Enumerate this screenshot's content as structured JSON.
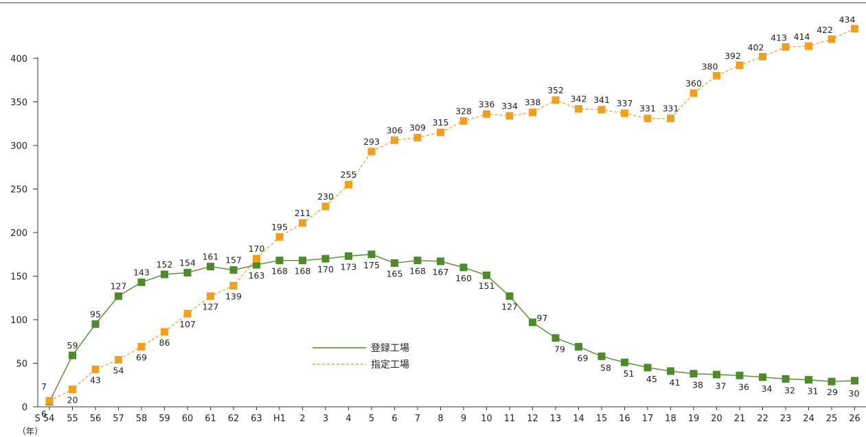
{
  "chart_data": {
    "type": "line",
    "categories": [
      "S 54",
      "55",
      "56",
      "57",
      "58",
      "59",
      "60",
      "61",
      "62",
      "63",
      "H1",
      "2",
      "3",
      "4",
      "5",
      "6",
      "7",
      "8",
      "9",
      "10",
      "11",
      "12",
      "13",
      "14",
      "15",
      "16",
      "17",
      "18",
      "19",
      "20",
      "21",
      "22",
      "23",
      "24",
      "25",
      "26"
    ],
    "series": [
      {
        "name": "登録工場",
        "color": "#4f8a2c",
        "line_style": "solid",
        "marker": "square",
        "values": [
          6,
          59,
          95,
          127,
          143,
          152,
          154,
          161,
          157,
          163,
          168,
          168,
          170,
          173,
          175,
          165,
          168,
          167,
          160,
          151,
          127,
          97,
          79,
          69,
          58,
          51,
          45,
          41,
          38,
          37,
          36,
          34,
          32,
          31,
          29,
          30
        ]
      },
      {
        "name": "指定工場",
        "color": "#f0a020",
        "line_style": "dashed",
        "marker": "square",
        "values": [
          7,
          20,
          43,
          54,
          69,
          86,
          107,
          127,
          139,
          170,
          195,
          211,
          230,
          255,
          293,
          306,
          309,
          315,
          328,
          336,
          334,
          338,
          352,
          342,
          341,
          337,
          331,
          331,
          360,
          380,
          392,
          402,
          413,
          414,
          422,
          434
        ]
      }
    ],
    "y_ticks": [
      "0",
      "50",
      "100",
      "150",
      "200",
      "250",
      "300",
      "350",
      "400"
    ],
    "ylim": [
      0,
      400
    ],
    "x_unit_label": "（年）",
    "legend_position": "center-left",
    "grid": false
  }
}
